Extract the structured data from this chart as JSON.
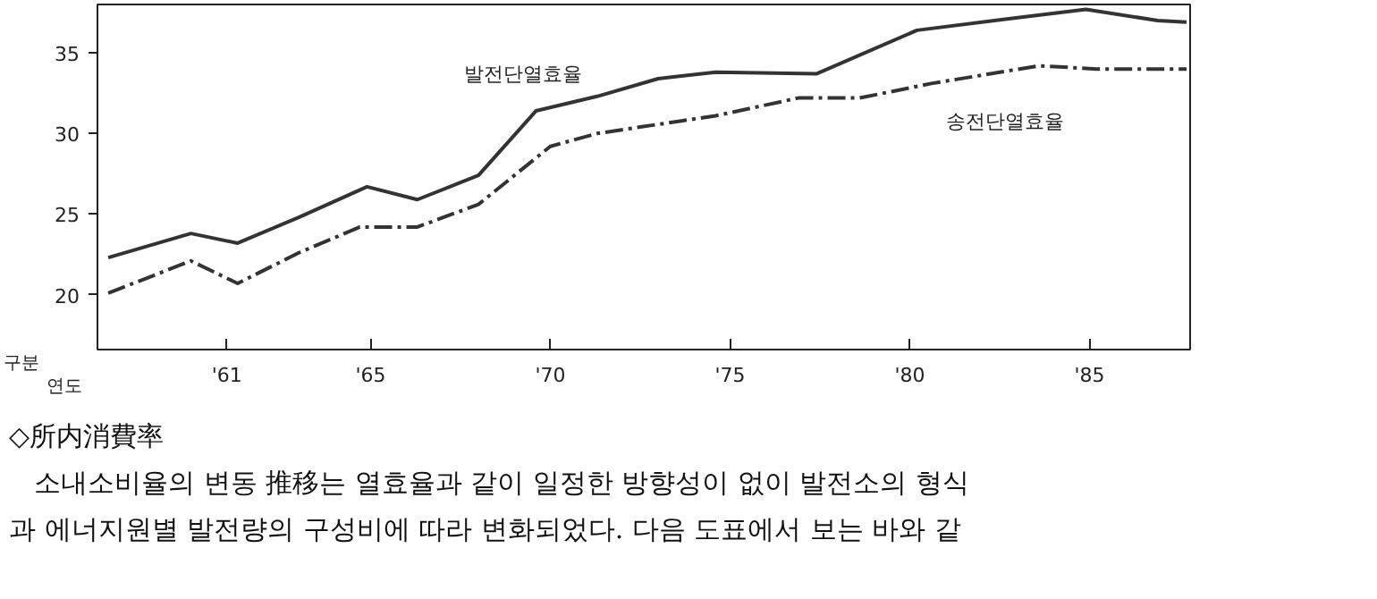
{
  "chart_data": {
    "type": "line",
    "xlabel": "연도",
    "ylabel": "구분",
    "xlim": [
      1957.4,
      1987.8
    ],
    "ylim": [
      16.6,
      38.0
    ],
    "xticks": [
      {
        "value": 1961,
        "label": "'61"
      },
      {
        "value": 1965,
        "label": "'65"
      },
      {
        "value": 1970,
        "label": "'70"
      },
      {
        "value": 1975,
        "label": "'75"
      },
      {
        "value": 1980,
        "label": "'80"
      },
      {
        "value": 1985,
        "label": "'85"
      }
    ],
    "yticks": [
      20,
      25,
      30,
      35
    ],
    "grid": false,
    "marker": "none",
    "series": [
      {
        "name": "발전단열효율",
        "color": "#333333",
        "line_style": "solid",
        "x": [
          1957.7,
          1960.0,
          1961.3,
          1963.0,
          1964.9,
          1966.3,
          1968.0,
          1969.6,
          1971.3,
          1973.0,
          1974.6,
          1977.4,
          1980.2,
          1982.7,
          1984.9,
          1986.9,
          1987.7
        ],
        "values": [
          22.3,
          23.8,
          23.2,
          24.8,
          26.7,
          25.9,
          27.4,
          31.4,
          32.3,
          33.4,
          33.8,
          33.7,
          36.4,
          37.1,
          37.7,
          37.0,
          36.9
        ]
      },
      {
        "name": "송전단열효율",
        "color": "#333333",
        "line_style": "dashdot",
        "x": [
          1957.7,
          1960.0,
          1961.3,
          1963.0,
          1964.7,
          1966.3,
          1968.0,
          1970.0,
          1971.3,
          1974.6,
          1976.9,
          1978.6,
          1980.6,
          1983.6,
          1985.2,
          1987.7
        ],
        "values": [
          20.1,
          22.1,
          20.7,
          22.6,
          24.2,
          24.2,
          25.6,
          29.2,
          30.0,
          31.1,
          32.2,
          32.2,
          33.1,
          34.2,
          34.0,
          34.0
        ]
      }
    ],
    "annotations": [
      "◇所内消費率",
      "소내소비율의 변동 推移는 열효율과 같이 일정한 방향성이 없이 발전소의 형식",
      "과 에너지원별 발전량의 구성비에 따라 변화되었다. 다음 도표에서 보는 바와 같"
    ]
  }
}
